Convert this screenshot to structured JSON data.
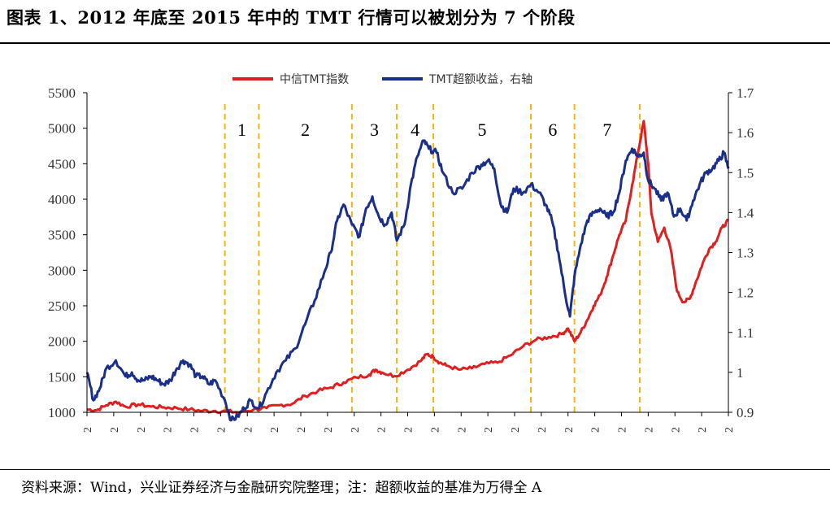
{
  "header": {
    "title": "图表 1、2012 年底至 2015 年中的 TMT 行情可以被划分为 7 个阶段"
  },
  "footer": {
    "source": "资料来源：Wind，兴业证券经济与金融研究院整理；注：超额收益的基准为万得全 A"
  },
  "colors": {
    "tmt_index": "#e02020",
    "excess_return": "#1a2f8a",
    "phase_line": "#f5b31a",
    "axis": "#000000"
  },
  "chart_data": {
    "type": "line",
    "title": "",
    "legend": [
      "中信TMT指数",
      "TMT超额收益，右轴"
    ],
    "legend_position": "top-center",
    "x_tick_label": "2",
    "x_tick_count": 25,
    "y_left": {
      "min": 1000,
      "max": 5500,
      "ticks": [
        1000,
        1500,
        2000,
        2500,
        3000,
        3500,
        4000,
        4500,
        5000,
        5500
      ]
    },
    "y_right": {
      "min": 0.9,
      "max": 1.7,
      "ticks": [
        "0.9",
        "1",
        "1.1",
        "1.2",
        "1.3",
        "1.4",
        "1.5",
        "1.6",
        "1.7"
      ]
    },
    "x_range": [
      0,
      100
    ],
    "phases": [
      {
        "label": "1",
        "start": 21.5,
        "end": 26.8
      },
      {
        "label": "2",
        "start": 26.8,
        "end": 41.3
      },
      {
        "label": "3",
        "start": 41.3,
        "end": 48.3
      },
      {
        "label": "4",
        "start": 48.3,
        "end": 54.0
      },
      {
        "label": "5",
        "start": 54.0,
        "end": 69.2
      },
      {
        "label": "6",
        "start": 69.2,
        "end": 76.0
      },
      {
        "label": "7",
        "start": 76.0,
        "end": 86.2
      }
    ],
    "series": [
      {
        "name": "中信TMT指数",
        "axis": "left",
        "points": [
          [
            0,
            1040
          ],
          [
            1.5,
            1030
          ],
          [
            3,
            1100
          ],
          [
            4.5,
            1150
          ],
          [
            6,
            1080
          ],
          [
            8,
            1110
          ],
          [
            10,
            1080
          ],
          [
            12,
            1070
          ],
          [
            14,
            1060
          ],
          [
            16,
            1040
          ],
          [
            18,
            1020
          ],
          [
            20,
            1020
          ],
          [
            22,
            1010
          ],
          [
            24,
            1000
          ],
          [
            26,
            1040
          ],
          [
            28,
            1060
          ],
          [
            30,
            1100
          ],
          [
            32,
            1120
          ],
          [
            34,
            1230
          ],
          [
            36,
            1300
          ],
          [
            38,
            1350
          ],
          [
            40,
            1420
          ],
          [
            42,
            1490
          ],
          [
            44,
            1530
          ],
          [
            45,
            1600
          ],
          [
            46,
            1560
          ],
          [
            48,
            1510
          ],
          [
            50,
            1600
          ],
          [
            52,
            1720
          ],
          [
            53,
            1820
          ],
          [
            54,
            1780
          ],
          [
            55,
            1700
          ],
          [
            56,
            1660
          ],
          [
            58,
            1600
          ],
          [
            60,
            1620
          ],
          [
            62,
            1680
          ],
          [
            64,
            1700
          ],
          [
            66,
            1800
          ],
          [
            68,
            1930
          ],
          [
            70,
            2020
          ],
          [
            72,
            2060
          ],
          [
            74,
            2100
          ],
          [
            75,
            2180
          ],
          [
            76,
            2000
          ],
          [
            77,
            2130
          ],
          [
            78,
            2300
          ],
          [
            79,
            2500
          ],
          [
            80,
            2650
          ],
          [
            81,
            2900
          ],
          [
            82,
            3200
          ],
          [
            83,
            3500
          ],
          [
            84,
            3700
          ],
          [
            85,
            4200
          ],
          [
            86,
            4700
          ],
          [
            86.8,
            5100
          ],
          [
            87.5,
            4500
          ],
          [
            88,
            3800
          ],
          [
            89,
            3400
          ],
          [
            90,
            3600
          ],
          [
            91,
            3300
          ],
          [
            92,
            2700
          ],
          [
            93,
            2550
          ],
          [
            94,
            2600
          ],
          [
            95,
            2850
          ],
          [
            96,
            3100
          ],
          [
            97,
            3300
          ],
          [
            98,
            3400
          ],
          [
            99,
            3600
          ],
          [
            100,
            3700
          ]
        ]
      },
      {
        "name": "TMT超额收益，右轴",
        "axis": "right",
        "points": [
          [
            0,
            1.0
          ],
          [
            1,
            0.93
          ],
          [
            2,
            0.96
          ],
          [
            3,
            1.01
          ],
          [
            4.5,
            1.03
          ],
          [
            6,
            0.99
          ],
          [
            7,
            1.0
          ],
          [
            8,
            0.98
          ],
          [
            9,
            0.98
          ],
          [
            10,
            0.99
          ],
          [
            11,
            0.98
          ],
          [
            12,
            0.97
          ],
          [
            13,
            0.98
          ],
          [
            14,
            1.01
          ],
          [
            15,
            1.03
          ],
          [
            16,
            1.02
          ],
          [
            17,
            0.99
          ],
          [
            18,
            0.99
          ],
          [
            19,
            0.97
          ],
          [
            20,
            0.98
          ],
          [
            21.5,
            0.93
          ],
          [
            22.5,
            0.88
          ],
          [
            23.5,
            0.89
          ],
          [
            24.5,
            0.91
          ],
          [
            25.5,
            0.93
          ],
          [
            26.8,
            0.91
          ],
          [
            28,
            0.95
          ],
          [
            29.5,
            1.0
          ],
          [
            31,
            1.03
          ],
          [
            32.5,
            1.06
          ],
          [
            34,
            1.12
          ],
          [
            35.5,
            1.18
          ],
          [
            37,
            1.25
          ],
          [
            38,
            1.3
          ],
          [
            39,
            1.38
          ],
          [
            40,
            1.42
          ],
          [
            41.3,
            1.37
          ],
          [
            42.5,
            1.34
          ],
          [
            43.5,
            1.41
          ],
          [
            44.5,
            1.44
          ],
          [
            45.5,
            1.39
          ],
          [
            46.5,
            1.37
          ],
          [
            47.5,
            1.4
          ],
          [
            48.3,
            1.33
          ],
          [
            49.5,
            1.37
          ],
          [
            50.5,
            1.47
          ],
          [
            51.5,
            1.54
          ],
          [
            52.5,
            1.58
          ],
          [
            53.3,
            1.56
          ],
          [
            54.5,
            1.55
          ],
          [
            55.5,
            1.5
          ],
          [
            57,
            1.45
          ],
          [
            58.5,
            1.46
          ],
          [
            60,
            1.5
          ],
          [
            61.5,
            1.52
          ],
          [
            62.5,
            1.53
          ],
          [
            63.5,
            1.51
          ],
          [
            64.5,
            1.42
          ],
          [
            65.5,
            1.4
          ],
          [
            66.5,
            1.46
          ],
          [
            68,
            1.45
          ],
          [
            69.2,
            1.47
          ],
          [
            70.5,
            1.45
          ],
          [
            71.5,
            1.42
          ],
          [
            72.5,
            1.38
          ],
          [
            73.5,
            1.3
          ],
          [
            74.5,
            1.2
          ],
          [
            75.3,
            1.14
          ],
          [
            76,
            1.24
          ],
          [
            77,
            1.32
          ],
          [
            78,
            1.38
          ],
          [
            79,
            1.4
          ],
          [
            80,
            1.41
          ],
          [
            81,
            1.39
          ],
          [
            82,
            1.4
          ],
          [
            83,
            1.45
          ],
          [
            84,
            1.53
          ],
          [
            85,
            1.56
          ],
          [
            86,
            1.54
          ],
          [
            86.8,
            1.55
          ],
          [
            87.5,
            1.48
          ],
          [
            88.5,
            1.46
          ],
          [
            89.5,
            1.43
          ],
          [
            90.5,
            1.45
          ],
          [
            91.5,
            1.39
          ],
          [
            92.5,
            1.41
          ],
          [
            93.5,
            1.38
          ],
          [
            94.5,
            1.43
          ],
          [
            95.5,
            1.47
          ],
          [
            96.5,
            1.5
          ],
          [
            97.5,
            1.51
          ],
          [
            98.5,
            1.53
          ],
          [
            99.3,
            1.55
          ],
          [
            100,
            1.51
          ]
        ]
      }
    ]
  }
}
